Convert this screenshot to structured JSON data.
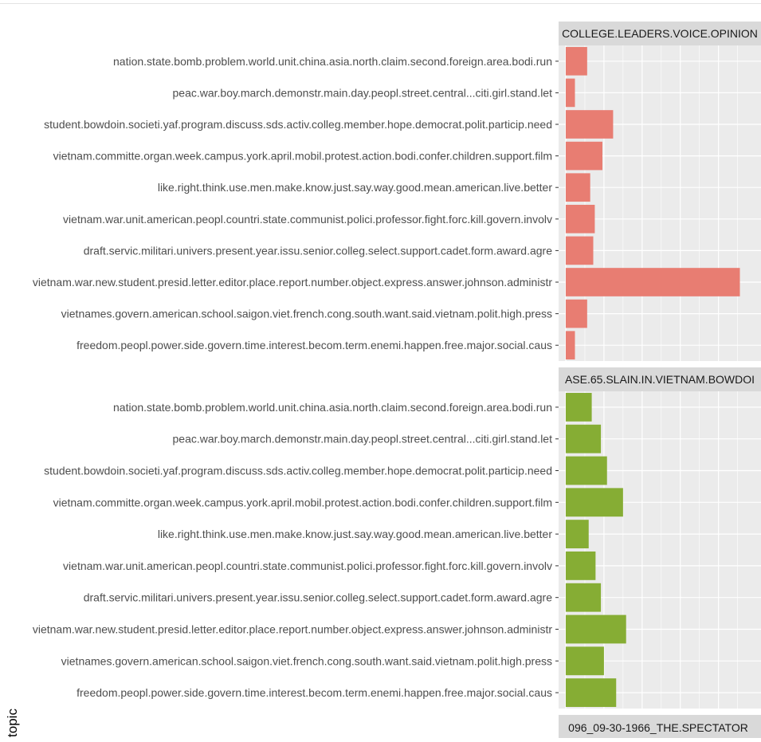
{
  "chart_data": {
    "type": "bar",
    "orientation": "horizontal",
    "ylabel": "topic",
    "grid": true,
    "categories": [
      "nation.state.bomb.problem.world.unit.china.asia.north.claim.second.foreign.area.bodi.run",
      "peac.war.boy.march.demonstr.main.day.peopl.street.central...citi.girl.stand.let",
      "student.bowdoin.societi.yaf.program.discuss.sds.activ.colleg.member.hope.democrat.polit.particip.need",
      "vietnam.committe.organ.week.campus.york.april.mobil.protest.action.bodi.confer.children.support.film",
      "like.right.think.use.men.make.know.just.say.way.good.mean.american.live.better",
      "vietnam.war.unit.american.peopl.countri.state.communist.polici.professor.fight.forc.kill.govern.involv",
      "draft.servic.militari.univers.present.year.issu.senior.colleg.select.support.cadet.form.award.agre",
      "vietnam.war.new.student.presid.letter.editor.place.report.number.object.express.answer.johnson.administr",
      "vietnames.govern.american.school.saigon.viet.french.cong.south.want.said.vietnam.polit.high.press",
      "freedom.peopl.power.side.govern.time.interest.becom.term.enemi.happen.free.major.social.caus"
    ],
    "xlim": [
      0,
      0.24
    ],
    "panels": [
      {
        "title": "COLLEGE.LEADERS.VOICE.OPINION",
        "color": "#E87D72",
        "values": [
          0.028,
          0.012,
          0.062,
          0.048,
          0.032,
          0.038,
          0.036,
          0.228,
          0.028,
          0.012
        ]
      },
      {
        "title": "ASE.65.SLAIN.IN.VIETNAM.BOWDOI",
        "color": "#86AD34",
        "values": [
          0.034,
          0.046,
          0.054,
          0.075,
          0.03,
          0.039,
          0.046,
          0.079,
          0.05,
          0.066
        ]
      }
    ],
    "bottom_strip": "096_09-30-1966_THE.SPECTATOR"
  }
}
